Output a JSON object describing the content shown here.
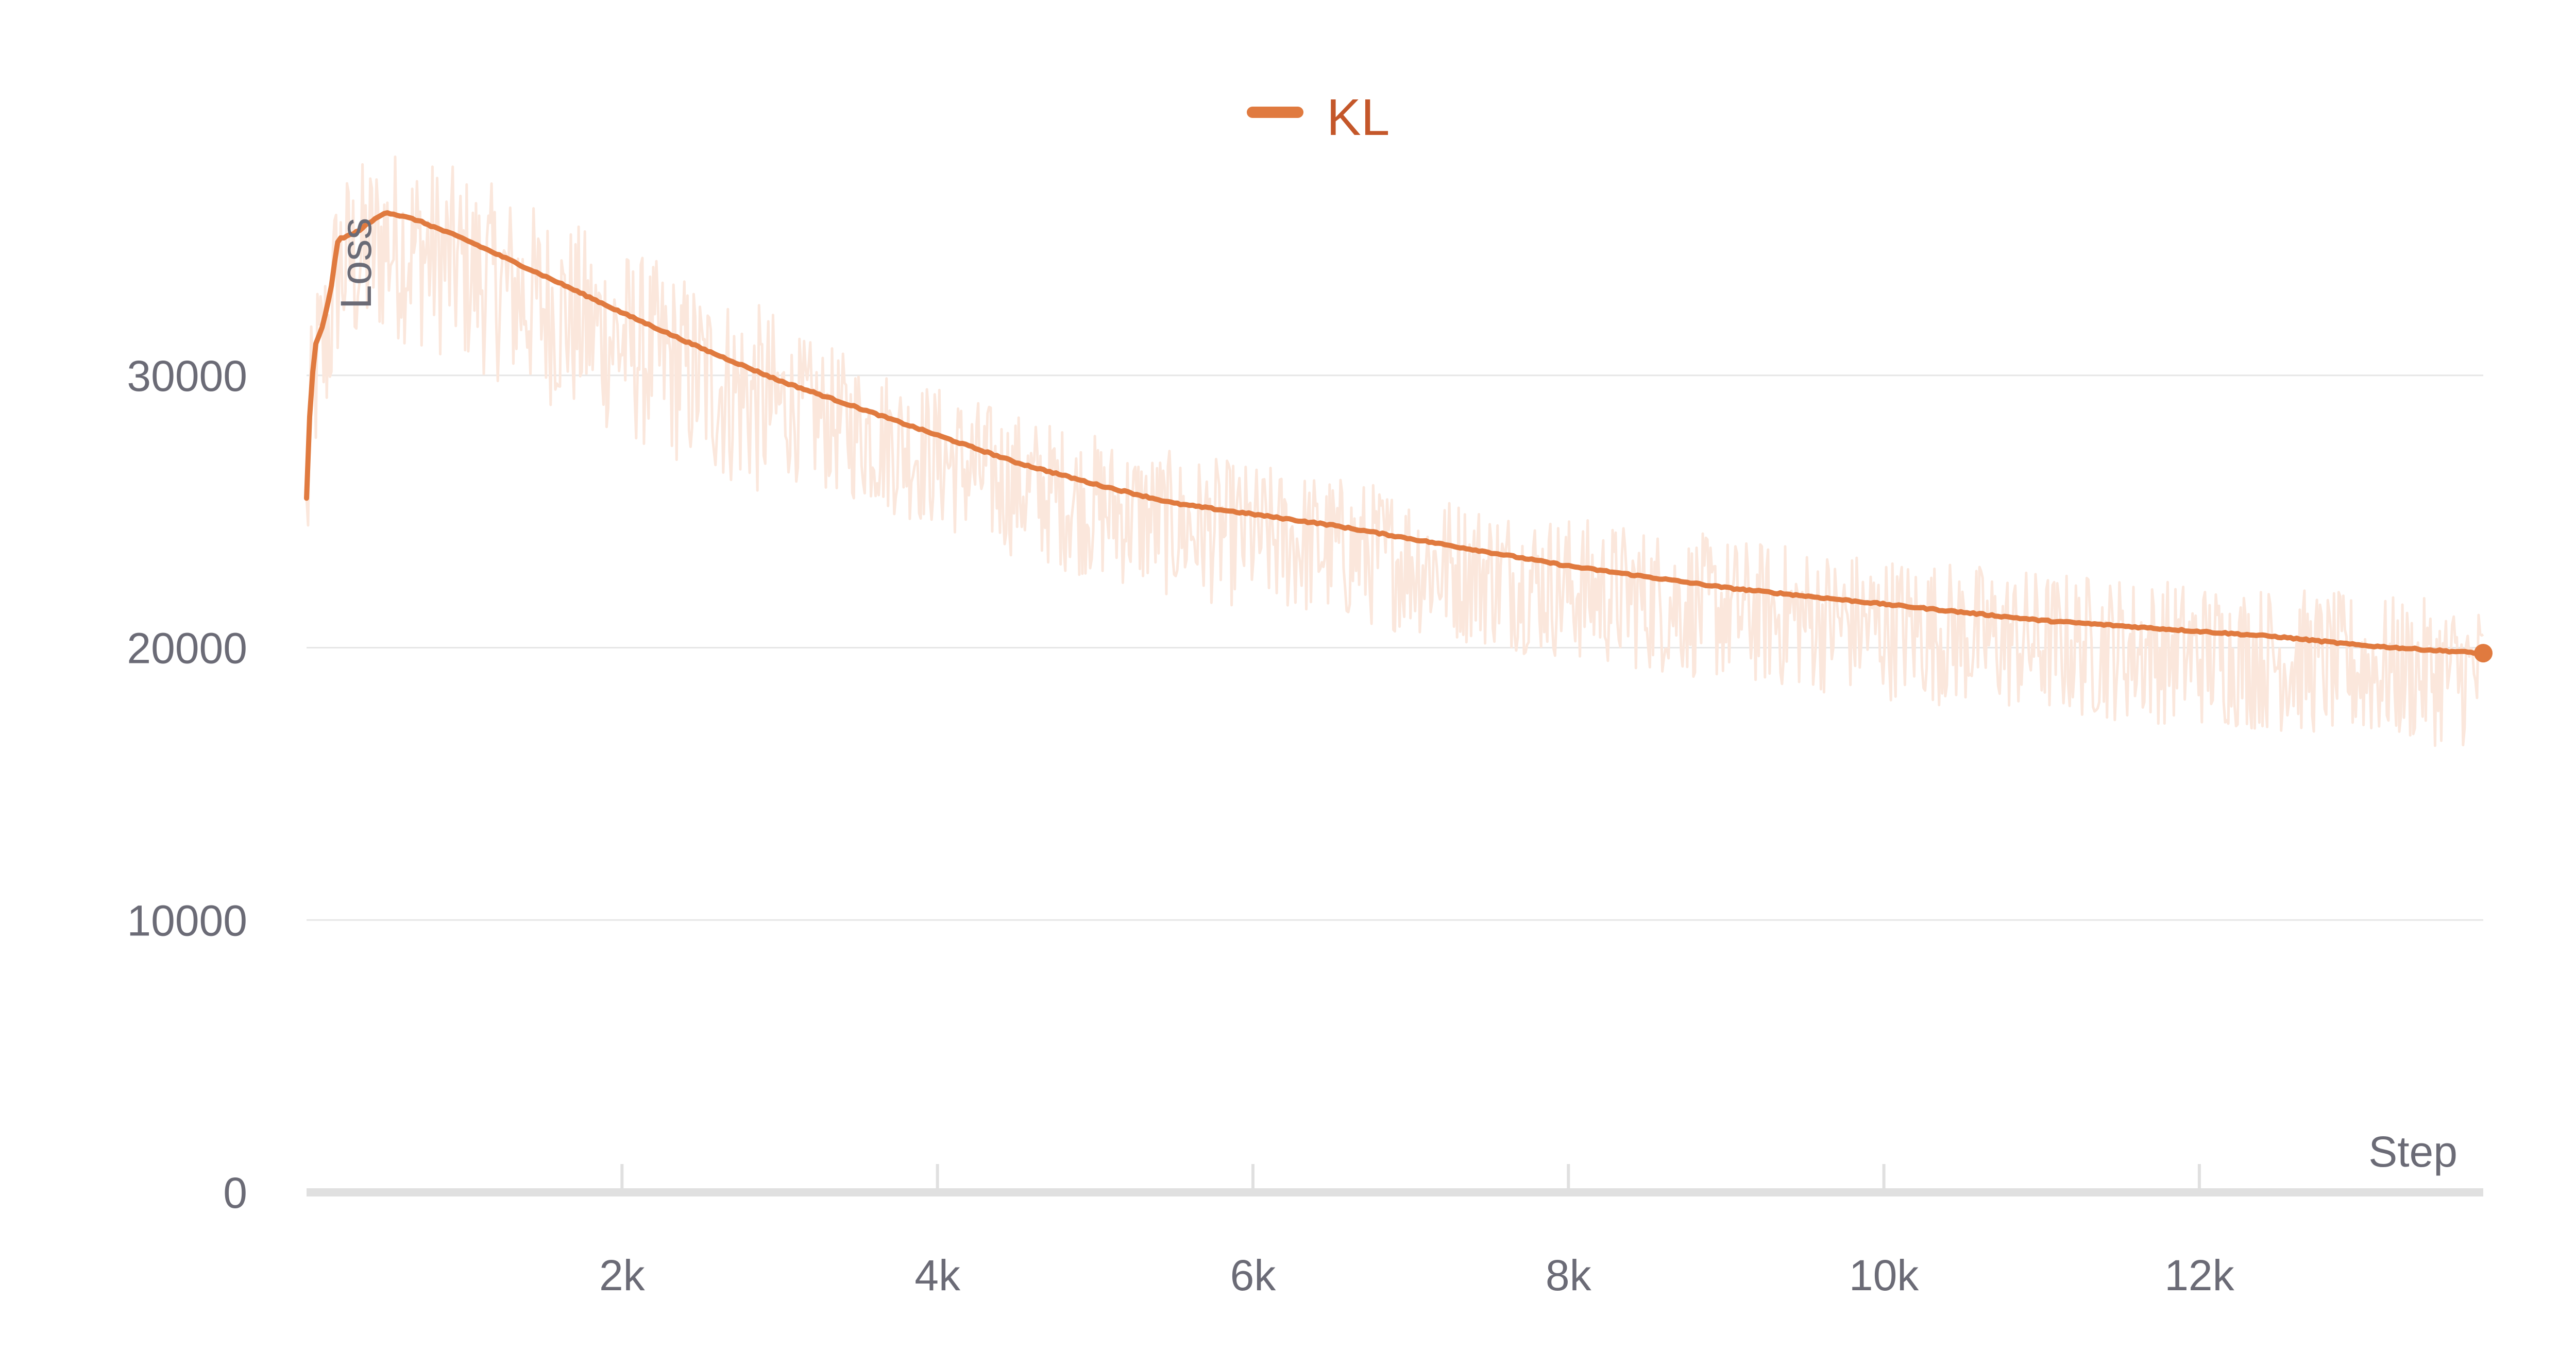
{
  "chart_data": {
    "type": "line",
    "title": "",
    "xlabel": "Step",
    "ylabel": "Loss",
    "xlim": [
      0,
      13800
    ],
    "ylim": [
      0,
      40000
    ],
    "x_ticks": [
      {
        "value": 2000,
        "label": "2k"
      },
      {
        "value": 4000,
        "label": "4k"
      },
      {
        "value": 6000,
        "label": "6k"
      },
      {
        "value": 8000,
        "label": "8k"
      },
      {
        "value": 10000,
        "label": "10k"
      },
      {
        "value": 12000,
        "label": "12k"
      }
    ],
    "y_ticks": [
      {
        "value": 0,
        "label": "0"
      },
      {
        "value": 10000,
        "label": "10000"
      },
      {
        "value": 20000,
        "label": "20000"
      },
      {
        "value": 30000,
        "label": "30000"
      }
    ],
    "grid": true,
    "legend_position": "top-center",
    "colors": {
      "smoothed": "#e07a3f",
      "raw": "#fbe7dc",
      "legend_text": "#c4572a",
      "grid": "#e6e6e6",
      "axis": "#e0e0e0"
    },
    "series": [
      {
        "name": "KL",
        "smoothed": {
          "x": [
            0,
            20,
            50,
            100,
            150,
            200,
            300,
            400,
            500,
            700,
            1000,
            1300,
            1600,
            2000,
            2500,
            3000,
            3500,
            4000,
            4500,
            5000,
            5500,
            6000,
            6500,
            7000,
            7500,
            8000,
            8500,
            9000,
            9500,
            10000,
            10500,
            11000,
            11500,
            12000,
            12500,
            13000,
            13500,
            13800
          ],
          "y": [
            25500,
            28500,
            31000,
            31800,
            33000,
            35000,
            35200,
            35600,
            36000,
            35700,
            35000,
            34200,
            33400,
            32300,
            31000,
            29800,
            28800,
            27800,
            26800,
            26000,
            25300,
            24900,
            24500,
            24000,
            23500,
            23000,
            22600,
            22200,
            21900,
            21600,
            21300,
            21000,
            20800,
            20600,
            20400,
            20100,
            19900,
            19800
          ]
        },
        "raw_noise_amplitude": 3000
      }
    ]
  }
}
